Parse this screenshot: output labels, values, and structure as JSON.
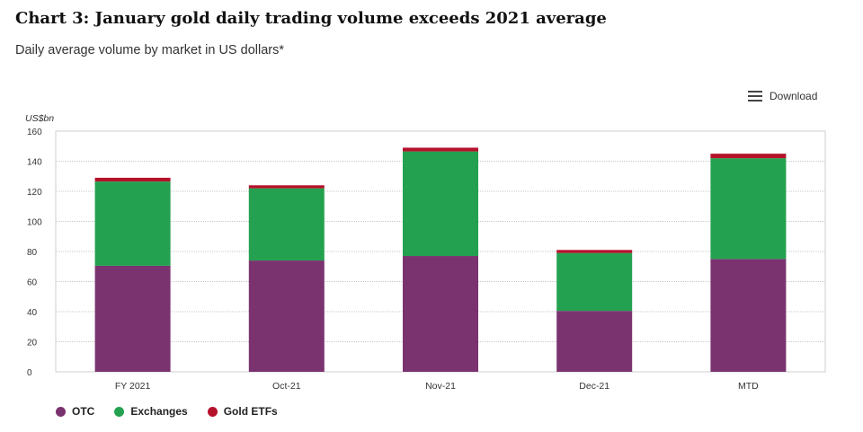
{
  "title": "Chart 3: January gold daily trading volume exceeds 2021 average",
  "subtitle": "Daily average volume by market in US dollars*",
  "download_label": "Download",
  "chart_data": {
    "type": "bar",
    "stacked": true,
    "ylabel": "US$bn",
    "ylim": [
      0,
      160
    ],
    "yticks": [
      0,
      20,
      40,
      60,
      80,
      100,
      120,
      140,
      160
    ],
    "categories": [
      "FY 2021",
      "Oct-21",
      "Nov-21",
      "Dec-21",
      "MTD"
    ],
    "series": [
      {
        "name": "OTC",
        "color": "#7b3370",
        "values": [
          70.5,
          74,
          77,
          40.5,
          75
        ]
      },
      {
        "name": "Exchanges",
        "color": "#24a150",
        "values": [
          56,
          48,
          69.5,
          38.5,
          67
        ]
      },
      {
        "name": "Gold ETFs",
        "color": "#b5122b",
        "values": [
          2.5,
          2,
          2.5,
          2,
          3
        ]
      }
    ],
    "grid": true,
    "legend_position": "bottom-left"
  }
}
